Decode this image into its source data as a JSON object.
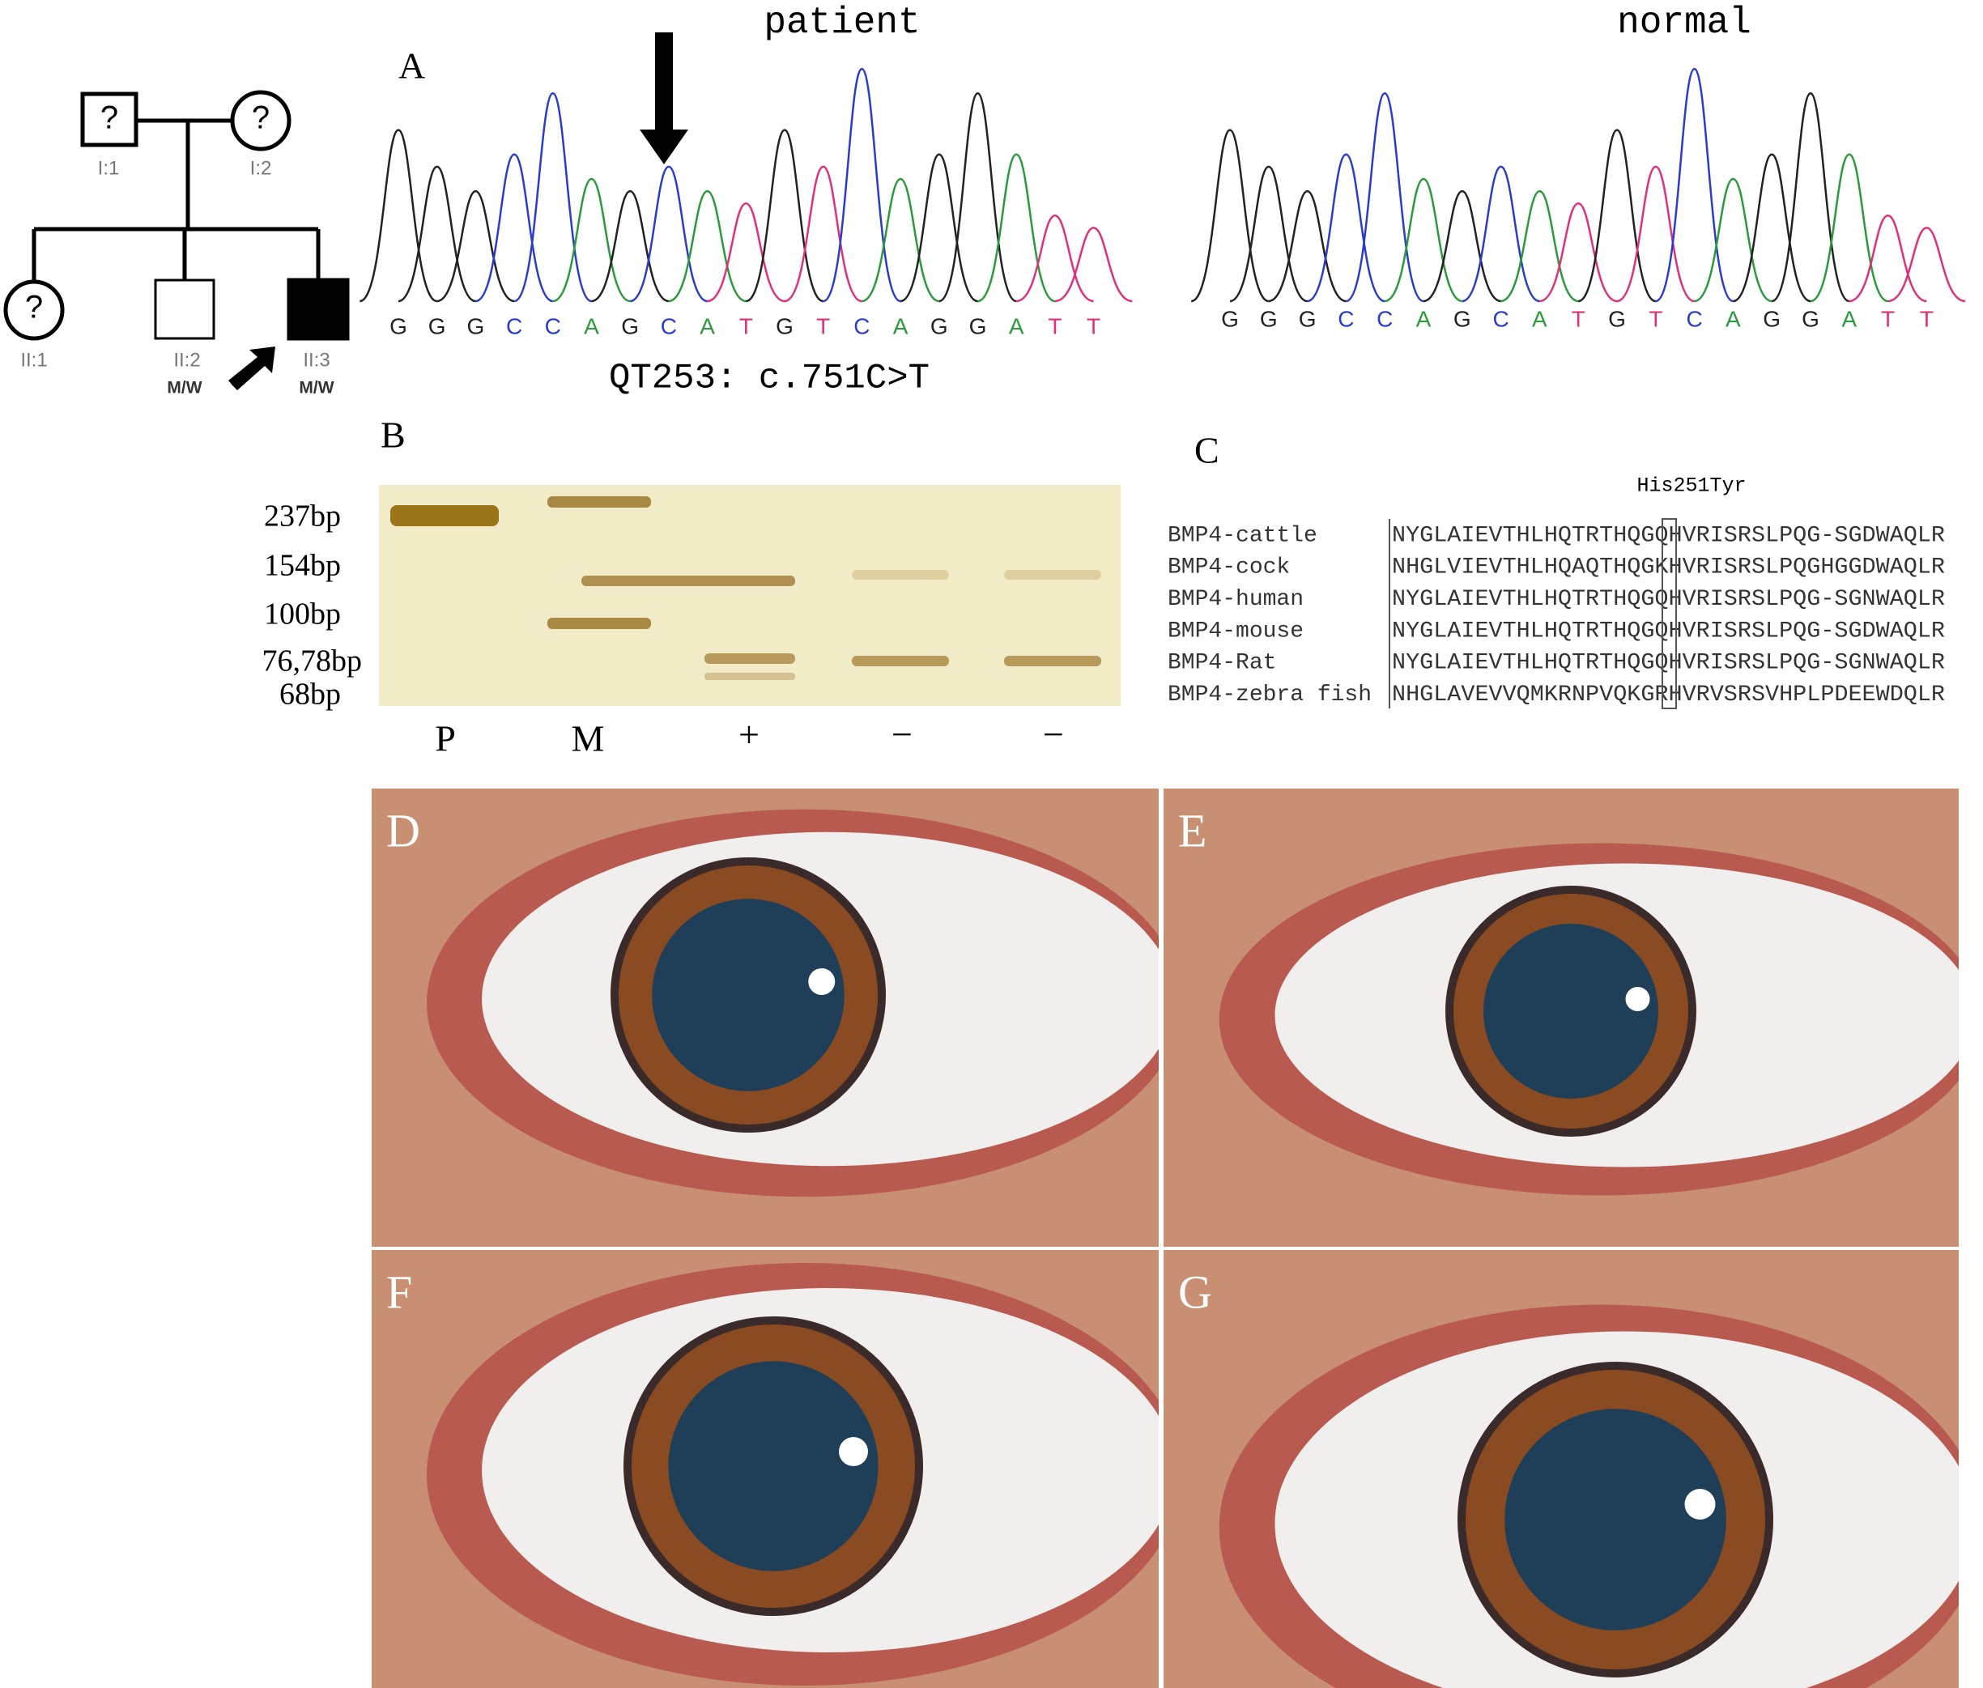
{
  "pedigree": {
    "individuals": [
      {
        "symbol": "?",
        "id": "I:1"
      },
      {
        "symbol": "?",
        "id": "I:2"
      },
      {
        "symbol": "?",
        "id": "II:1"
      },
      {
        "id": "II:2",
        "genotype": "M/W"
      },
      {
        "id": "II:3",
        "genotype": "M/W"
      }
    ]
  },
  "panel_a": {
    "letter": "A",
    "patient_title": "patient",
    "normal_title": "normal",
    "patient_sequence": [
      "G",
      "G",
      "G",
      "C",
      "C",
      "A",
      "G",
      "C",
      "A",
      "T",
      "G",
      "T",
      "C",
      "A",
      "G",
      "G",
      "A",
      "T",
      "T"
    ],
    "normal_sequence": [
      "G",
      "G",
      "G",
      "C",
      "C",
      "A",
      "G",
      "C",
      "A",
      "T",
      "G",
      "T",
      "C",
      "A",
      "G",
      "G",
      "A",
      "T",
      "T"
    ],
    "mutation_label": "QT253: c.751C>T"
  },
  "panel_b": {
    "letter": "B",
    "size_labels": [
      "237bp",
      "154bp",
      "100bp",
      "76,78bp",
      "68bp"
    ],
    "lane_labels": [
      "P",
      "M",
      "+",
      "−",
      "−"
    ]
  },
  "panel_c": {
    "letter": "C",
    "annotation": "His251Tyr",
    "rows": [
      {
        "species": "BMP4-cattle",
        "sequence": "NYGLAIEVTHLHQTRTHQGQHVRISRSLPQG-SGDWAQLR"
      },
      {
        "species": "BMP4-cock",
        "sequence": "NHGLVIEVTHLHQAQTHQGKHVRISRSLPQGHGGDWAQLR"
      },
      {
        "species": "BMP4-human",
        "sequence": "NYGLAIEVTHLHQTRTHQGQHVRISRSLPQG-SGNWAQLR"
      },
      {
        "species": "BMP4-mouse",
        "sequence": "NYGLAIEVTHLHQTRTHQGQHVRISRSLPQG-SGDWAQLR"
      },
      {
        "species": "BMP4-Rat",
        "sequence": "NYGLAIEVTHLHQTRTHQGQHVRISRSLPQG-SGNWAQLR"
      },
      {
        "species": "BMP4-zebra fish",
        "sequence": "NHGLAVEVVQMKRNPVQKGRHVRVSRSVHPLPDEEWDQLR"
      }
    ]
  },
  "photos": [
    {
      "letter": "D"
    },
    {
      "letter": "E"
    },
    {
      "letter": "F"
    },
    {
      "letter": "G"
    }
  ]
}
